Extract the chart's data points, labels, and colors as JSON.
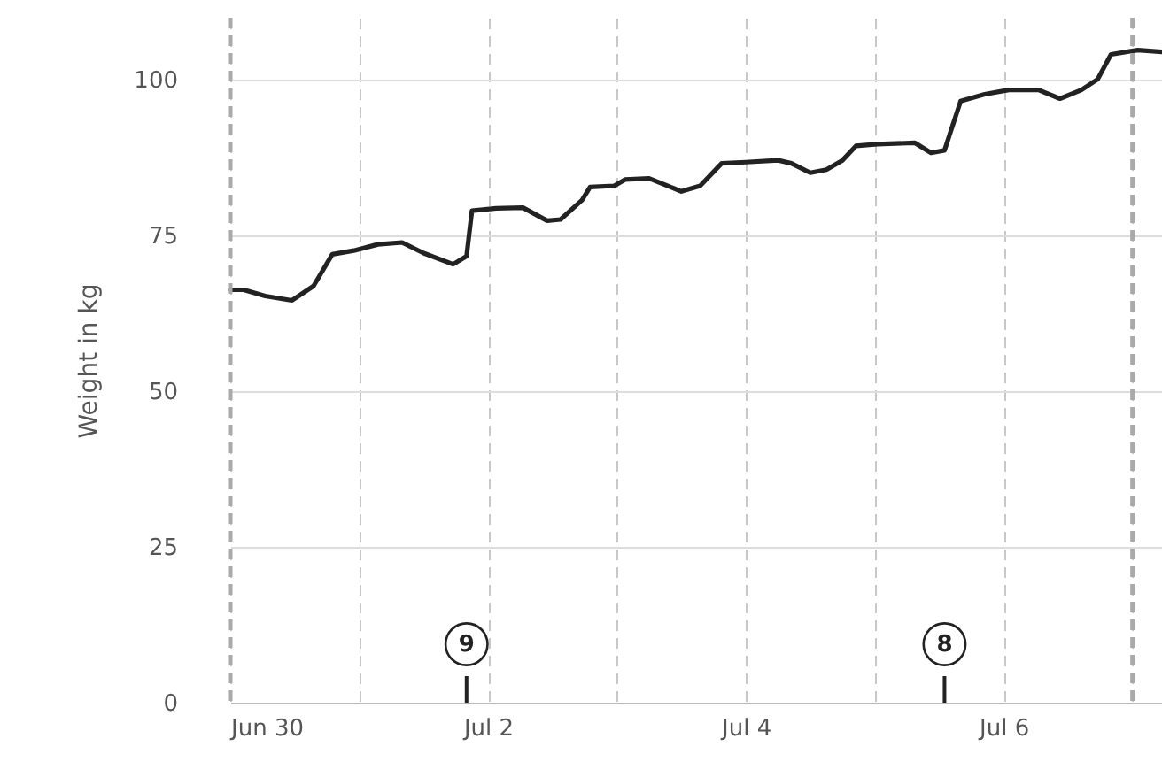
{
  "chart_data": {
    "type": "line",
    "ylabel": "Weight in kg",
    "x": [
      "--06-30T00:00",
      "--06-30T02:30",
      "--06-30T06:30",
      "--06-30T11:30",
      "--06-30T15:30",
      "--06-30T19:00",
      "--06-30T23:00",
      "--07-01T03:30",
      "--07-01T08:00",
      "--07-01T12:00",
      "--07-01T17:30",
      "--07-01T20:00",
      "--07-01T21:00",
      "--07-02T01:30",
      "--07-02T06:30",
      "--07-02T11:00",
      "--07-02T13:30",
      "--07-02T17:30",
      "--07-02T19:00",
      "--07-02T23:30",
      "--07-03T01:30",
      "--07-03T06:00",
      "--07-03T10:00",
      "--07-03T12:00",
      "--07-03T15:30",
      "--07-03T19:30",
      "--07-04T00:00",
      "--07-04T06:00",
      "--07-04T08:30",
      "--07-04T12:00",
      "--07-04T15:00",
      "--07-04T18:00",
      "--07-04T20:30",
      "--07-05T00:30",
      "--07-05T07:30",
      "--07-05T10:30",
      "--07-05T13:00",
      "--07-05T16:00",
      "--07-05T20:30",
      "--07-06T01:00",
      "--07-06T06:30",
      "--07-06T10:30",
      "--07-06T14:30",
      "--07-06T17:30",
      "--07-06T20:00",
      "--07-07T01:00",
      "--07-07T05:30"
    ],
    "series": [
      {
        "color": "#222222",
        "values": [
          66.3,
          66.3,
          65.3,
          64.6,
          66.9,
          72.0,
          72.6,
          73.6,
          73.9,
          72.2,
          70.4,
          71.7,
          79.0,
          79.4,
          79.5,
          77.4,
          77.6,
          80.7,
          82.8,
          83.0,
          84.0,
          84.2,
          82.8,
          82.1,
          83.0,
          86.6,
          86.8,
          87.1,
          86.6,
          85.1,
          85.6,
          87.1,
          89.4,
          89.7,
          89.9,
          88.3,
          88.7,
          96.6,
          97.7,
          98.4,
          98.4,
          97.0,
          98.4,
          100.1,
          104.1,
          104.8,
          104.5
        ]
      }
    ],
    "xlim": [
      "--06-30T00:00",
      "--07-07T05:30"
    ],
    "xticks": [
      {
        "value": "--06-30",
        "label": "Jun 30"
      },
      {
        "value": "--07-01",
        "label": null
      },
      {
        "value": "--07-02",
        "label": "Jul 2"
      },
      {
        "value": "--07-03",
        "label": null
      },
      {
        "value": "--07-04",
        "label": "Jul 4"
      },
      {
        "value": "--07-05",
        "label": null
      },
      {
        "value": "--07-06",
        "label": "Jul 6"
      },
      {
        "value": "--07-07",
        "label": null
      }
    ],
    "ylim": [
      0,
      110
    ],
    "yticks": [
      0,
      25,
      50,
      75,
      100
    ],
    "grid": true,
    "marker": "none",
    "line_style": "solid",
    "ref_lines": [
      {
        "axis": "x",
        "value": "--06-30",
        "color": "#aaaaaa",
        "line_style": "dashed"
      },
      {
        "axis": "x",
        "value": "--07-07",
        "color": "#aaaaaa",
        "line_style": "dashed"
      }
    ],
    "annotations": [
      {
        "text": "9",
        "x": "--07-01T20:00"
      },
      {
        "text": "8",
        "x": "--07-05T13:00"
      }
    ]
  }
}
